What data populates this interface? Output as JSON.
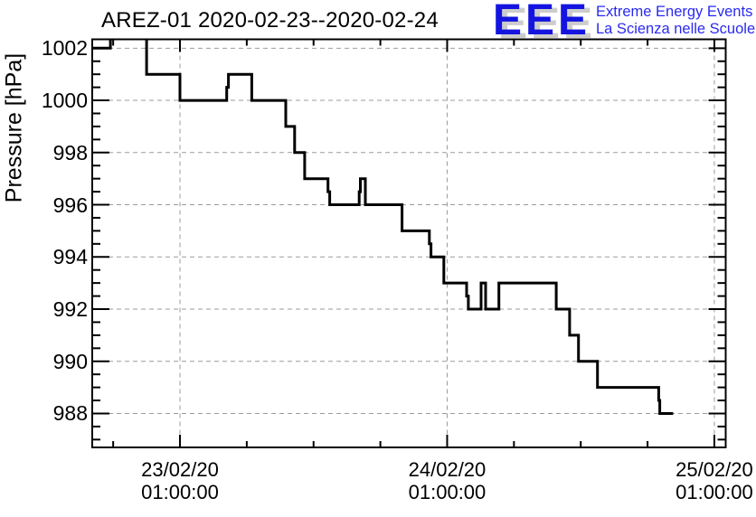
{
  "header": {
    "title": "AREZ-01 2020-02-23--2020-02-24"
  },
  "logo": {
    "acronym": "EEE",
    "tagline_en": "Extreme Energy Events",
    "tagline_it": "La Scienza nelle Scuole",
    "blue": "#1414e0",
    "tagline_blue": "#2a2af0",
    "shadow_gray": "#cccccc"
  },
  "chart_data": {
    "type": "line",
    "subtype": "step-after",
    "title": "AREZ-01 2020-02-23--2020-02-24",
    "station": "AREZ-01",
    "date_range": "2020-02-23--2020-02-24",
    "ylabel": "Pressure [hPa]",
    "grid": true,
    "legend": false,
    "line_color": "#000000",
    "grid_color": "#9b9b9b",
    "x_axis": {
      "reference": "hours relative to 23/02/20 01:00:00",
      "range_h": [
        -7.88,
        49.02
      ],
      "minor_tick_step_h": 6,
      "major_ticks": [
        {
          "h": 0,
          "label": [
            "23/02/20",
            "01:00:00"
          ]
        },
        {
          "h": 24,
          "label": [
            "24/02/20",
            "01:00:00"
          ]
        },
        {
          "h": 48,
          "label": [
            "25/02/20",
            "01:00:00"
          ]
        }
      ]
    },
    "y_axis": {
      "range_hpa": [
        986.7,
        1002.34
      ],
      "minor_tick_step_hpa": 0.5,
      "major_ticks": [
        1002,
        1000,
        998,
        996,
        994,
        992,
        990,
        988
      ]
    },
    "series": [
      {
        "name": "pressure",
        "units": "hPa",
        "step_points": [
          [
            -7.88,
            1002
          ],
          [
            -6.25,
            1002.5
          ],
          [
            -3.0,
            1001
          ],
          [
            0.0,
            1000
          ],
          [
            4.2,
            1000.5
          ],
          [
            4.35,
            1001
          ],
          [
            6.45,
            1000
          ],
          [
            9.5,
            999
          ],
          [
            10.3,
            998
          ],
          [
            11.2,
            997
          ],
          [
            13.3,
            996.5
          ],
          [
            13.45,
            996
          ],
          [
            16.1,
            996.5
          ],
          [
            16.2,
            997
          ],
          [
            16.65,
            996
          ],
          [
            19.95,
            995
          ],
          [
            22.4,
            994.5
          ],
          [
            22.55,
            994
          ],
          [
            23.7,
            993
          ],
          [
            25.75,
            992.5
          ],
          [
            25.9,
            992
          ],
          [
            27.05,
            993
          ],
          [
            27.45,
            992
          ],
          [
            28.65,
            993
          ],
          [
            33.8,
            992
          ],
          [
            35.0,
            991
          ],
          [
            35.8,
            990
          ],
          [
            37.5,
            989
          ],
          [
            43.0,
            988.5
          ],
          [
            43.1,
            988
          ],
          [
            44.3,
            988
          ]
        ]
      }
    ]
  }
}
